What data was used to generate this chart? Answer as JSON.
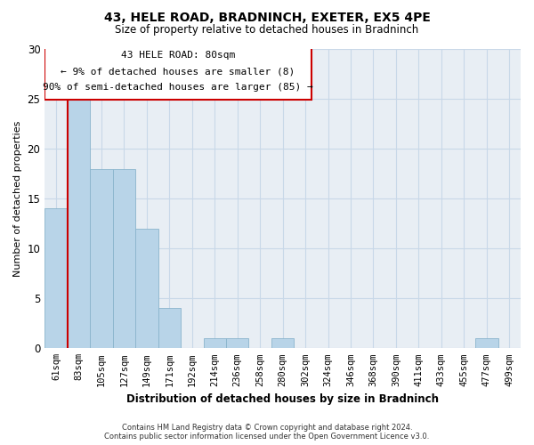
{
  "title": "43, HELE ROAD, BRADNINCH, EXETER, EX5 4PE",
  "subtitle": "Size of property relative to detached houses in Bradninch",
  "xlabel": "Distribution of detached houses by size in Bradninch",
  "ylabel": "Number of detached properties",
  "footer_line1": "Contains HM Land Registry data © Crown copyright and database right 2024.",
  "footer_line2": "Contains public sector information licensed under the Open Government Licence v3.0.",
  "bin_labels": [
    "61sqm",
    "83sqm",
    "105sqm",
    "127sqm",
    "149sqm",
    "171sqm",
    "192sqm",
    "214sqm",
    "236sqm",
    "258sqm",
    "280sqm",
    "302sqm",
    "324sqm",
    "346sqm",
    "368sqm",
    "390sqm",
    "411sqm",
    "433sqm",
    "455sqm",
    "477sqm",
    "499sqm"
  ],
  "bar_values": [
    14,
    25,
    18,
    18,
    12,
    4,
    0,
    1,
    1,
    0,
    1,
    0,
    0,
    0,
    0,
    0,
    0,
    0,
    0,
    1,
    0
  ],
  "bar_color": "#b8d4e8",
  "bar_edgecolor": "#8ab4cc",
  "property_line_x": 0.5,
  "property_line_color": "#cc0000",
  "ylim": [
    0,
    30
  ],
  "yticks": [
    0,
    5,
    10,
    15,
    20,
    25,
    30
  ],
  "annotation_text_line1": "43 HELE ROAD: 80sqm",
  "annotation_text_line2": "← 9% of detached houses are smaller (8)",
  "annotation_text_line3": "90% of semi-detached houses are larger (85) →",
  "grid_color": "#c8d8e8",
  "background_color": "#e8eef4"
}
